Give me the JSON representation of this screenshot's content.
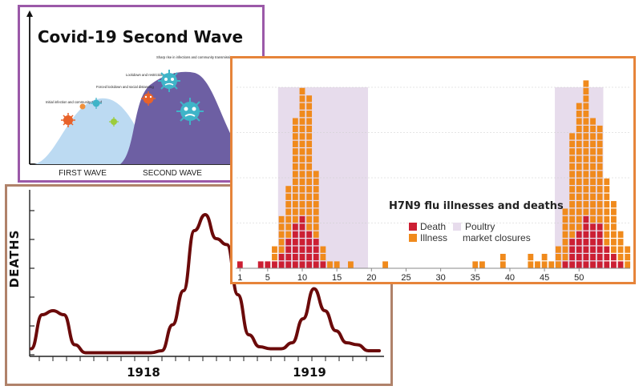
{
  "chart_data": [
    {
      "type": "area",
      "title": "Covid-19 Second Wave",
      "x_labels": [
        "FIRST WAVE",
        "SECOND WAVE"
      ],
      "annotations": [
        "Initial infection and community spread",
        "Forced lockdown and social distancing",
        "Lockdown and restrictions eased",
        "Sharp rise in infections and community transmission"
      ],
      "colors": {
        "first_wave": "#bcdaf2",
        "second_wave": "#6d5fa3"
      }
    },
    {
      "type": "line",
      "ylabel": "DEATHS",
      "x_labels": [
        "1918",
        "1919"
      ],
      "series": [
        {
          "values": [
            0.3,
            2.0,
            2.2,
            2.0,
            0.5,
            0.1,
            0.1,
            0.1,
            0.1,
            0.1,
            0.1,
            0.1,
            0.2,
            1.5,
            3.2,
            6.2,
            7.0,
            5.8,
            5.5,
            3.0,
            1.0,
            0.4,
            0.3,
            0.3,
            0.6,
            1.8,
            3.3,
            2.2,
            1.2,
            0.6,
            0.5,
            0.2,
            0.2
          ]
        }
      ],
      "ylim": [
        0,
        8
      ],
      "color": "#6b0a0a"
    },
    {
      "type": "bar",
      "title": "H7N9 flu illnesses and deaths",
      "legend": {
        "death": "Death",
        "illness": "Illness",
        "closure": "Poultry market closures"
      },
      "x_ticks": [
        1,
        5,
        10,
        15,
        20,
        25,
        30,
        35,
        40,
        45,
        50
      ],
      "ylim": [
        0,
        24
      ],
      "closure_ranges": [
        [
          7,
          19
        ],
        [
          47,
          53
        ]
      ],
      "illness": [
        1,
        0,
        0,
        1,
        1,
        3,
        7,
        11,
        20,
        24,
        23,
        13,
        3,
        1,
        1,
        0,
        1,
        0,
        0,
        0,
        0,
        1,
        0,
        0,
        0,
        0,
        0,
        0,
        0,
        0,
        0,
        0,
        0,
        0,
        1,
        1,
        0,
        0,
        2,
        0,
        0,
        0,
        2,
        1,
        2,
        1,
        3,
        8,
        18,
        22,
        25,
        20,
        19,
        12,
        9,
        5,
        3
      ],
      "death": [
        1,
        0,
        0,
        1,
        1,
        1,
        2,
        4,
        6,
        7,
        5,
        4,
        1,
        0,
        0,
        0,
        0,
        0,
        0,
        0,
        0,
        0,
        0,
        0,
        0,
        0,
        0,
        0,
        0,
        0,
        0,
        0,
        0,
        0,
        0,
        0,
        0,
        0,
        0,
        0,
        0,
        0,
        0,
        0,
        0,
        0,
        0,
        1,
        4,
        5,
        7,
        6,
        6,
        3,
        2,
        1,
        0
      ],
      "colors": {
        "death": "#cc1f33",
        "illness": "#f08a1c",
        "closure": "#e7dcec"
      }
    }
  ]
}
